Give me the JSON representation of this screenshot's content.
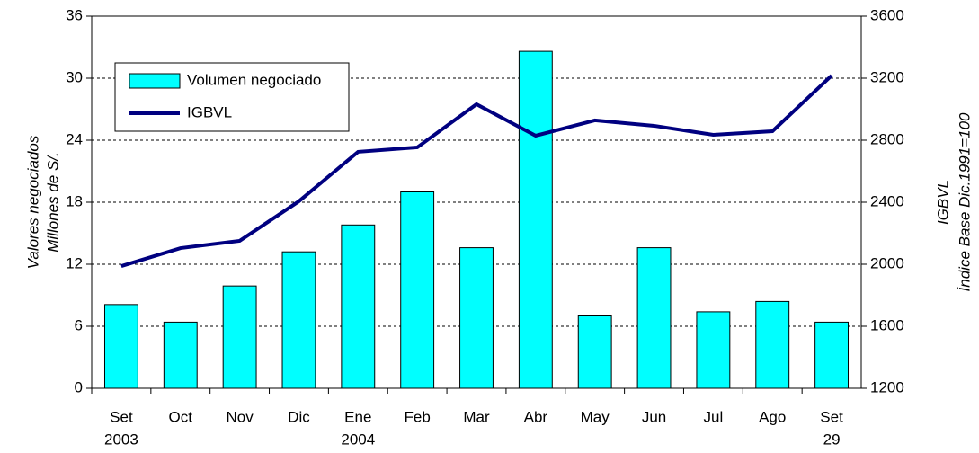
{
  "chart_data": {
    "type": "bar_line",
    "categories": [
      "Set",
      "Oct",
      "Nov",
      "Dic",
      "Ene",
      "Feb",
      "Mar",
      "Abr",
      "May",
      "Jun",
      "Jul",
      "Ago",
      "Set"
    ],
    "category_sublabels": [
      "2003",
      null,
      null,
      null,
      "2004",
      null,
      null,
      null,
      null,
      null,
      null,
      null,
      "29"
    ],
    "series": [
      {
        "name": "Volumen negociado",
        "type": "bar",
        "color": "#00ffff",
        "values": [
          8.1,
          6.4,
          9.9,
          13.2,
          15.8,
          19.0,
          13.6,
          32.6,
          7.0,
          13.6,
          7.4,
          8.4,
          6.4
        ]
      },
      {
        "name": "IGBVL",
        "type": "line",
        "axis": "y2",
        "color": "#000080",
        "values": [
          1988,
          2104,
          2151,
          2406,
          2725,
          2754,
          3032,
          2829,
          2928,
          2893,
          2835,
          2858,
          3217
        ]
      }
    ],
    "ylabel": [
      "Valores negociados",
      "Millones de S/."
    ],
    "y2label": [
      "IGBVL",
      "Índice Base Dic.1991=100"
    ],
    "ylim": [
      0,
      36
    ],
    "yticks": [
      0,
      6,
      12,
      18,
      24,
      30,
      36
    ],
    "y2lim": [
      1200,
      3600
    ],
    "y2ticks": [
      1200,
      1600,
      2000,
      2400,
      2800,
      3200,
      3600
    ],
    "grid": true,
    "legend": "upper-left"
  }
}
